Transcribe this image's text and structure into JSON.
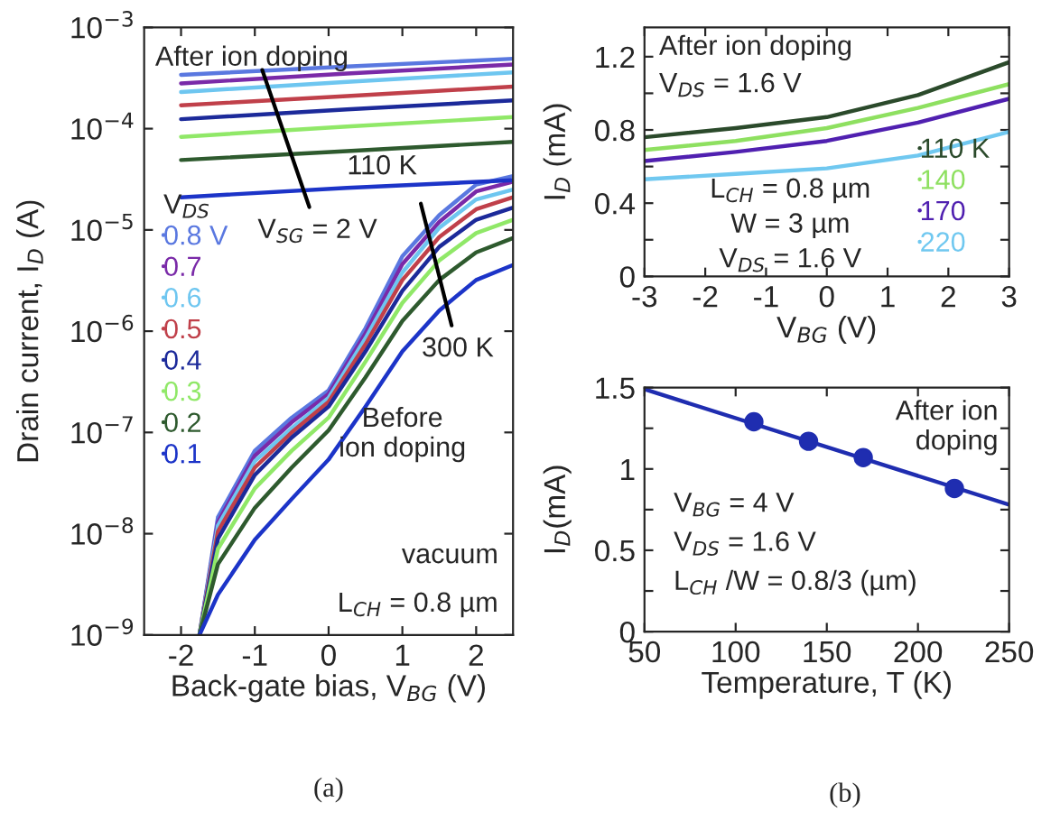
{
  "chart_data": [
    {
      "type": "line",
      "xlabel": "Back-gate bias, V$_{BG}$ (V)",
      "ylabel": "Drain current, I$_{D}$ (A)",
      "log": "y",
      "legend": "center left",
      "legend_title": "V$_{DS}$",
      "xlim": [
        -2.5,
        2.5
      ],
      "xticks": [
        -2,
        -1,
        0,
        1,
        2
      ],
      "ylim": [
        1e-09,
        0.001
      ],
      "yticks": [
        {
          "value": 1e-09,
          "label": "10$^{−9}$"
        },
        {
          "value": 1e-08,
          "label": "10$^{−8}$"
        },
        {
          "value": 1e-07,
          "label": "10$^{−7}$"
        },
        {
          "value": 1e-06,
          "label": "10$^{−6}$"
        },
        {
          "value": 1e-05,
          "label": "10$^{−5}$"
        },
        {
          "value": 0.0001,
          "label": "10$^{−4}$"
        },
        {
          "value": 0.001,
          "label": "10$^{−3}$"
        }
      ],
      "series": [
        {
          "name": "0.8 V",
          "color": "#5a78e0",
          "x": [
            -1.75,
            -1.5,
            -1,
            -0.5,
            0,
            0.5,
            1,
            1.5,
            2,
            2.5
          ],
          "values": [
            1e-09,
            1.45e-08,
            6.6e-08,
            1.4e-07,
            2.6e-07,
            1.07e-06,
            5.5e-06,
            1.4e-05,
            2.8e-05,
            3.4e-05
          ]
        },
        {
          "name": "0.7",
          "color": "#7a2aa8",
          "x": [
            -1.75,
            -1.5,
            -1,
            -0.5,
            0,
            0.5,
            1,
            1.5,
            2,
            2.5
          ],
          "values": [
            1e-09,
            1.3e-08,
            5.9e-08,
            1.26e-07,
            2.4e-07,
            9.5e-07,
            4.6e-06,
            1.2e-05,
            2.4e-05,
            3e-05
          ]
        },
        {
          "name": "0.6",
          "color": "#6ec6f0",
          "x": [
            -1.75,
            -1.5,
            -1,
            -0.5,
            0,
            0.5,
            1,
            1.5,
            2,
            2.5
          ],
          "values": [
            1e-09,
            1.2e-08,
            5.2e-08,
            1.1e-07,
            2.2e-07,
            8.5e-07,
            3.8e-06,
            1.05e-05,
            2e-05,
            2.5e-05
          ]
        },
        {
          "name": "0.5",
          "color": "#c0404a",
          "x": [
            -1.75,
            -1.5,
            -1,
            -0.5,
            0,
            0.5,
            1,
            1.5,
            2,
            2.5
          ],
          "values": [
            1e-09,
            1.05e-08,
            4.5e-08,
            1e-07,
            2e-07,
            7.4e-07,
            3.2e-06,
            8.5e-06,
            1.6e-05,
            2.1e-05
          ]
        },
        {
          "name": "0.4",
          "color": "#1c2a9a",
          "x": [
            -1.75,
            -1.5,
            -1,
            -0.5,
            0,
            0.5,
            1,
            1.5,
            2,
            2.5
          ],
          "values": [
            1e-09,
            8.9e-09,
            3.8e-08,
            8.9e-08,
            1.8e-07,
            6.3e-07,
            2.5e-06,
            6.8e-06,
            1.26e-05,
            1.66e-05
          ]
        },
        {
          "name": "0.3",
          "color": "#90e868",
          "x": [
            -1.75,
            -1.5,
            -1,
            -0.5,
            0,
            0.5,
            1,
            1.5,
            2,
            2.5
          ],
          "values": [
            1e-09,
            7.1e-09,
            2.8e-08,
            6.6e-08,
            1.4e-07,
            5e-07,
            1.9e-06,
            5e-06,
            9.3e-06,
            1.26e-05
          ]
        },
        {
          "name": "0.2",
          "color": "#2e5a2e",
          "x": [
            -1.75,
            -1.5,
            -1,
            -0.5,
            0,
            0.5,
            1,
            1.5,
            2,
            2.5
          ],
          "values": [
            1e-09,
            5e-09,
            1.8e-08,
            4.5e-08,
            1.05e-07,
            3.5e-07,
            1.26e-06,
            3.2e-06,
            6e-06,
            8.3e-06
          ]
        },
        {
          "name": "0.1",
          "color": "#1c34c8",
          "x": [
            -1.75,
            -1.5,
            -1,
            -0.5,
            0,
            0.5,
            1,
            1.5,
            2,
            2.5
          ],
          "values": [
            1e-09,
            2.5e-09,
            8.7e-09,
            2.2e-08,
            5.4e-08,
            1.8e-07,
            6.3e-07,
            1.6e-06,
            3.2e-06,
            4.5e-06
          ]
        },
        {
          "color": "#5a78e0",
          "x": [
            -2,
            0.25,
            2.5
          ],
          "values": [
            0.00034,
            0.00041,
            0.00049
          ]
        },
        {
          "color": "#7a2aa8",
          "x": [
            -2,
            0.25,
            2.5
          ],
          "values": [
            0.00028,
            0.00035,
            0.00043
          ]
        },
        {
          "color": "#6ec6f0",
          "x": [
            -2,
            0.25,
            2.5
          ],
          "values": [
            0.00023,
            0.00029,
            0.00036
          ]
        },
        {
          "color": "#c0404a",
          "x": [
            -2,
            0.25,
            2.5
          ],
          "values": [
            0.00017,
            0.00021,
            0.00026
          ]
        },
        {
          "color": "#1c2a9a",
          "x": [
            -2,
            0.25,
            2.5
          ],
          "values": [
            0.000124,
            0.000155,
            0.00019
          ]
        },
        {
          "color": "#90e868",
          "x": [
            -2,
            0.25,
            2.5
          ],
          "values": [
            8.3e-05,
            0.000105,
            0.00013
          ]
        },
        {
          "color": "#2e5a2e",
          "x": [
            -2,
            0.25,
            2.5
          ],
          "values": [
            4.9e-05,
            6e-05,
            7.4e-05
          ]
        },
        {
          "color": "#1c34c8",
          "x": [
            -2,
            0.25,
            2.5
          ],
          "values": [
            2.1e-05,
            2.6e-05,
            3.1e-05
          ]
        }
      ],
      "annotations": [
        "After ion doping",
        "110 K",
        {
          "text": "V$_{SG}$ = 2 V",
          "x": -0.9,
          "y": 0.00038
        },
        "300 K",
        "Before\nion doping",
        "vacuum",
        "L$_{CH}$ = 0.8 µm",
        "(a)"
      ]
    },
    {
      "type": "line",
      "xlabel": "V$_{BG}$ (V)",
      "ylabel": "I$_{D}$ (mA)",
      "legend": "lower right",
      "xlim": [
        -3,
        3
      ],
      "xticks": [
        -3,
        -2,
        -1,
        0,
        1,
        2,
        3
      ],
      "ylim": [
        0,
        1.36
      ],
      "yticks": [
        0,
        {
          "value": 0.2,
          "label": null
        },
        0.4,
        {
          "value": 0.6,
          "label": null
        },
        0.8,
        {
          "value": 1.0,
          "label": null
        },
        1.2
      ],
      "series": [
        {
          "name": "110 K",
          "color": "#2b4a2b",
          "x": [
            -3,
            -1.5,
            0,
            1.5,
            3
          ],
          "values": [
            0.76,
            0.81,
            0.87,
            0.99,
            1.17
          ]
        },
        {
          "name": "140",
          "color": "#8ee060",
          "x": [
            -3,
            -1.5,
            0,
            1.5,
            3
          ],
          "values": [
            0.69,
            0.74,
            0.81,
            0.92,
            1.05
          ]
        },
        {
          "name": "170",
          "color": "#5020b0",
          "x": [
            -3,
            -1.5,
            0,
            1.5,
            3
          ],
          "values": [
            0.63,
            0.68,
            0.74,
            0.84,
            0.97
          ]
        },
        {
          "name": "220",
          "color": "#70c8f0",
          "x": [
            -3,
            -1.5,
            0,
            1.5,
            3
          ],
          "values": [
            0.53,
            0.56,
            0.59,
            0.66,
            0.79
          ]
        }
      ],
      "annotations": [
        "After ion doping",
        "V$_{DS}$ = 1.6 V",
        "L$_{CH}$ = 0.8 µm",
        "W = 3 µm",
        "V$_{DS}$ = 1.6 V"
      ]
    },
    {
      "type": "line",
      "xlabel": "Temperature, T (K)",
      "ylabel": "I$_{D}$(mA)",
      "xlim": [
        50,
        250
      ],
      "xticks": [
        50,
        100,
        150,
        200,
        250
      ],
      "ylim": [
        0,
        1.5
      ],
      "yticks": [
        0,
        {
          "value": 0.25,
          "label": null
        },
        0.5,
        {
          "value": 0.75,
          "label": null
        },
        1,
        {
          "value": 1.25,
          "label": null
        },
        1.5
      ],
      "series": [
        {
          "type": "line",
          "color": "#1f2db0",
          "x": [
            50,
            250
          ],
          "values": [
            1.49,
            0.78
          ]
        },
        {
          "type": "scatter",
          "marker": "circle",
          "color": "#1f2db0",
          "x": [
            110,
            140,
            170,
            220
          ],
          "values": [
            1.29,
            1.17,
            1.07,
            0.88
          ]
        }
      ],
      "annotations": [
        "After ion\ndoping",
        "V$_{BG}$ = 4 V",
        "V$_{DS}$ = 1.6 V",
        "L$_{CH}$ /W = 0.8/3 (µm)",
        "(b)"
      ]
    }
  ]
}
